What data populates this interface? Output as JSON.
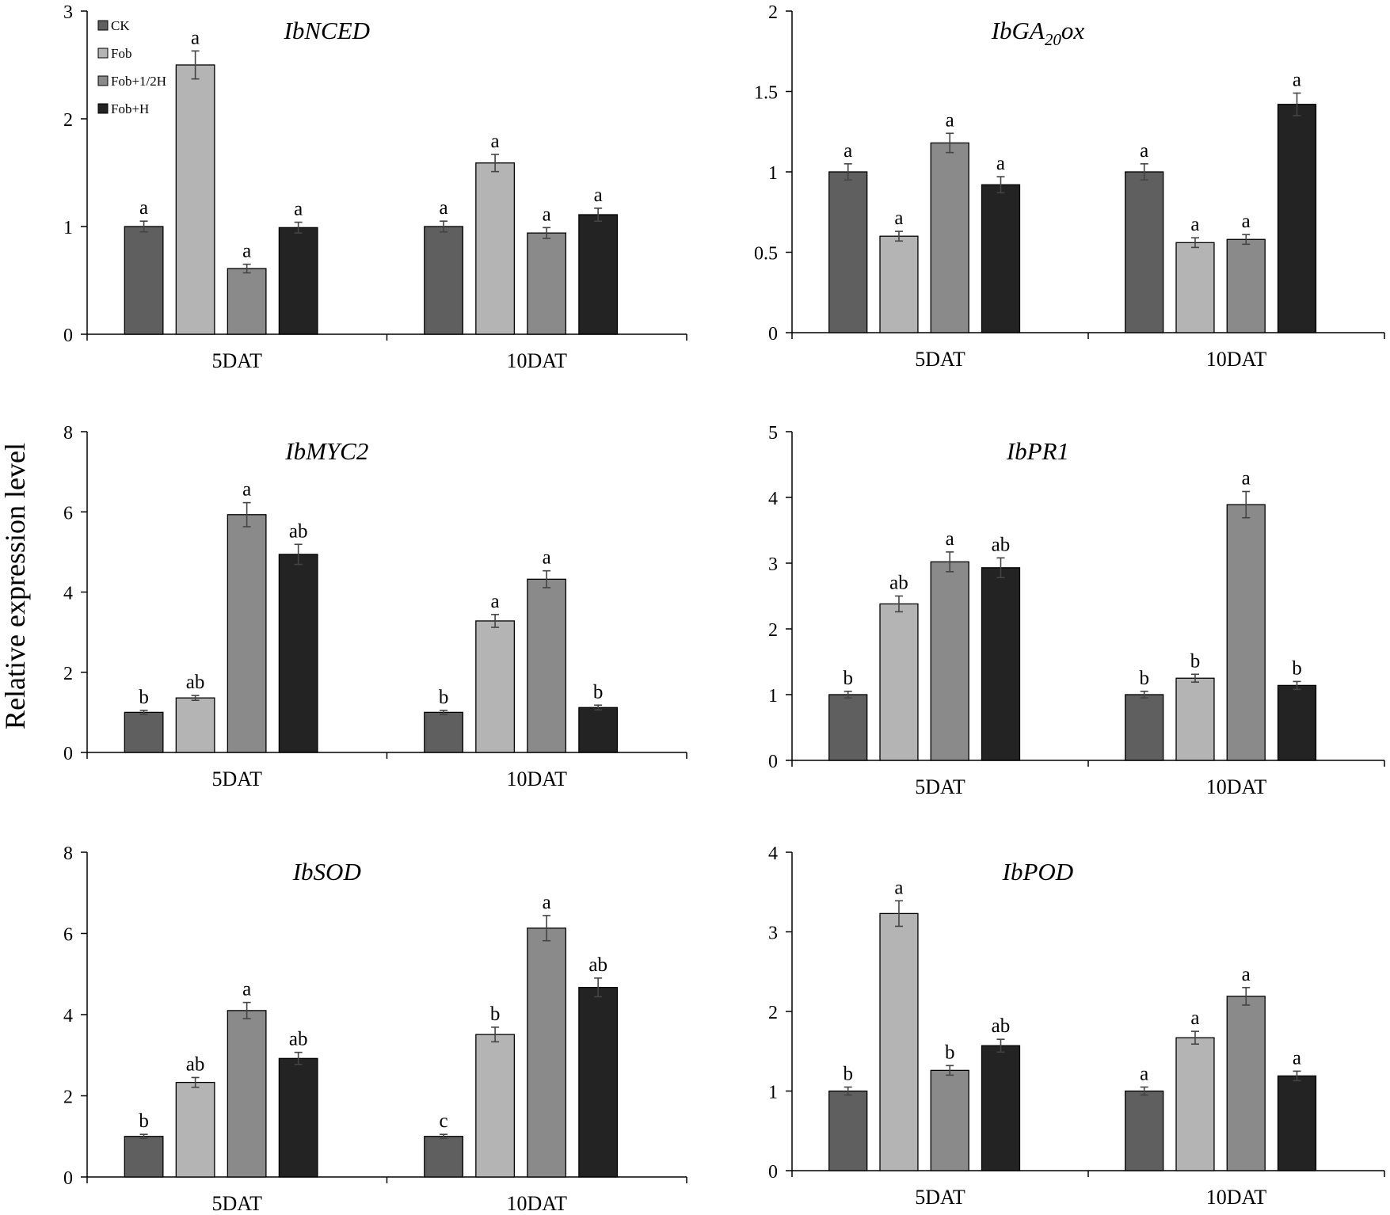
{
  "figure": {
    "ylabel": "Relative expression level",
    "legend": [
      {
        "name": "CK",
        "color": "#5f5f5f"
      },
      {
        "name": "Fob",
        "color": "#b4b4b4"
      },
      {
        "name": "Fob+1/2H",
        "color": "#8a8a8a"
      },
      {
        "name": "Fob+H",
        "color": "#232323"
      }
    ],
    "legend_placement": "top-left of first panel"
  },
  "chart_data": [
    {
      "type": "bar",
      "title": "IbNCED",
      "categories": [
        "5DAT",
        "10DAT"
      ],
      "ylim": [
        0,
        3
      ],
      "yticks": [
        "0",
        "1",
        "2",
        "3"
      ],
      "grid": false,
      "series": [
        {
          "name": "CK",
          "values": [
            1.0,
            1.0
          ],
          "errors": [
            0.05,
            0.05
          ],
          "labels": [
            "a",
            "a"
          ]
        },
        {
          "name": "Fob",
          "values": [
            2.5,
            1.59
          ],
          "errors": [
            0.13,
            0.08
          ],
          "labels": [
            "a",
            "a"
          ]
        },
        {
          "name": "Fob+1/2H",
          "values": [
            0.61,
            0.94
          ],
          "errors": [
            0.04,
            0.05
          ],
          "labels": [
            "a",
            "a"
          ]
        },
        {
          "name": "Fob+H",
          "values": [
            0.99,
            1.11
          ],
          "errors": [
            0.05,
            0.06
          ],
          "labels": [
            "a",
            "a"
          ]
        }
      ]
    },
    {
      "type": "bar",
      "title": "IbGA",
      "title_sub": "20",
      "title_tail": "ox",
      "categories": [
        "5DAT",
        "10DAT"
      ],
      "ylim": [
        0,
        2
      ],
      "yticks": [
        "0",
        "0.5",
        "1",
        "1.5",
        "2"
      ],
      "grid": false,
      "series": [
        {
          "name": "CK",
          "values": [
            1.0,
            1.0
          ],
          "errors": [
            0.05,
            0.05
          ],
          "labels": [
            "a",
            "a"
          ]
        },
        {
          "name": "Fob",
          "values": [
            0.6,
            0.56
          ],
          "errors": [
            0.03,
            0.03
          ],
          "labels": [
            "a",
            "a"
          ]
        },
        {
          "name": "Fob+1/2H",
          "values": [
            1.18,
            0.58
          ],
          "errors": [
            0.06,
            0.03
          ],
          "labels": [
            "a",
            "a"
          ]
        },
        {
          "name": "Fob+H",
          "values": [
            0.92,
            1.42
          ],
          "errors": [
            0.05,
            0.07
          ],
          "labels": [
            "a",
            "a"
          ]
        }
      ]
    },
    {
      "type": "bar",
      "title": "IbMYC2",
      "categories": [
        "5DAT",
        "10DAT"
      ],
      "ylim": [
        0,
        8
      ],
      "yticks": [
        "0",
        "2",
        "4",
        "6",
        "8"
      ],
      "grid": false,
      "series": [
        {
          "name": "CK",
          "values": [
            1.0,
            1.0
          ],
          "errors": [
            0.05,
            0.05
          ],
          "labels": [
            "b",
            "b"
          ]
        },
        {
          "name": "Fob",
          "values": [
            1.36,
            3.28
          ],
          "errors": [
            0.06,
            0.16
          ],
          "labels": [
            "ab",
            "a"
          ]
        },
        {
          "name": "Fob+1/2H",
          "values": [
            5.93,
            4.32
          ],
          "errors": [
            0.3,
            0.21
          ],
          "labels": [
            "a",
            "a"
          ]
        },
        {
          "name": "Fob+H",
          "values": [
            4.94,
            1.12
          ],
          "errors": [
            0.25,
            0.06
          ],
          "labels": [
            "ab",
            "b"
          ]
        }
      ]
    },
    {
      "type": "bar",
      "title": "IbPR1",
      "categories": [
        "5DAT",
        "10DAT"
      ],
      "ylim": [
        0,
        5
      ],
      "yticks": [
        "0",
        "1",
        "2",
        "3",
        "4",
        "5"
      ],
      "grid": false,
      "series": [
        {
          "name": "CK",
          "values": [
            1.0,
            1.0
          ],
          "errors": [
            0.05,
            0.05
          ],
          "labels": [
            "b",
            "b"
          ]
        },
        {
          "name": "Fob",
          "values": [
            2.38,
            1.25
          ],
          "errors": [
            0.12,
            0.06
          ],
          "labels": [
            "ab",
            "b"
          ]
        },
        {
          "name": "Fob+1/2H",
          "values": [
            3.02,
            3.89
          ],
          "errors": [
            0.15,
            0.2
          ],
          "labels": [
            "a",
            "a"
          ]
        },
        {
          "name": "Fob+H",
          "values": [
            2.93,
            1.14
          ],
          "errors": [
            0.15,
            0.06
          ],
          "labels": [
            "ab",
            "b"
          ]
        }
      ]
    },
    {
      "type": "bar",
      "title": "IbSOD",
      "categories": [
        "5DAT",
        "10DAT"
      ],
      "ylim": [
        0,
        8
      ],
      "yticks": [
        "0",
        "2",
        "4",
        "6",
        "8"
      ],
      "grid": false,
      "series": [
        {
          "name": "CK",
          "values": [
            1.0,
            1.0
          ],
          "errors": [
            0.05,
            0.05
          ],
          "labels": [
            "b",
            "c"
          ]
        },
        {
          "name": "Fob",
          "values": [
            2.33,
            3.51
          ],
          "errors": [
            0.12,
            0.18
          ],
          "labels": [
            "ab",
            "b"
          ]
        },
        {
          "name": "Fob+1/2H",
          "values": [
            4.1,
            6.13
          ],
          "errors": [
            0.2,
            0.31
          ],
          "labels": [
            "a",
            "a"
          ]
        },
        {
          "name": "Fob+H",
          "values": [
            2.92,
            4.67
          ],
          "errors": [
            0.15,
            0.23
          ],
          "labels": [
            "ab",
            "ab"
          ]
        }
      ]
    },
    {
      "type": "bar",
      "title": "IbPOD",
      "categories": [
        "5DAT",
        "10DAT"
      ],
      "ylim": [
        0,
        4
      ],
      "yticks": [
        "0",
        "1",
        "2",
        "3",
        "4"
      ],
      "grid": false,
      "series": [
        {
          "name": "CK",
          "values": [
            1.0,
            1.0
          ],
          "errors": [
            0.05,
            0.05
          ],
          "labels": [
            "b",
            "a"
          ]
        },
        {
          "name": "Fob",
          "values": [
            3.23,
            1.67
          ],
          "errors": [
            0.16,
            0.08
          ],
          "labels": [
            "a",
            "a"
          ]
        },
        {
          "name": "Fob+1/2H",
          "values": [
            1.26,
            2.19
          ],
          "errors": [
            0.06,
            0.11
          ],
          "labels": [
            "b",
            "a"
          ]
        },
        {
          "name": "Fob+H",
          "values": [
            1.57,
            1.19
          ],
          "errors": [
            0.08,
            0.06
          ],
          "labels": [
            "ab",
            "a"
          ]
        }
      ]
    }
  ]
}
